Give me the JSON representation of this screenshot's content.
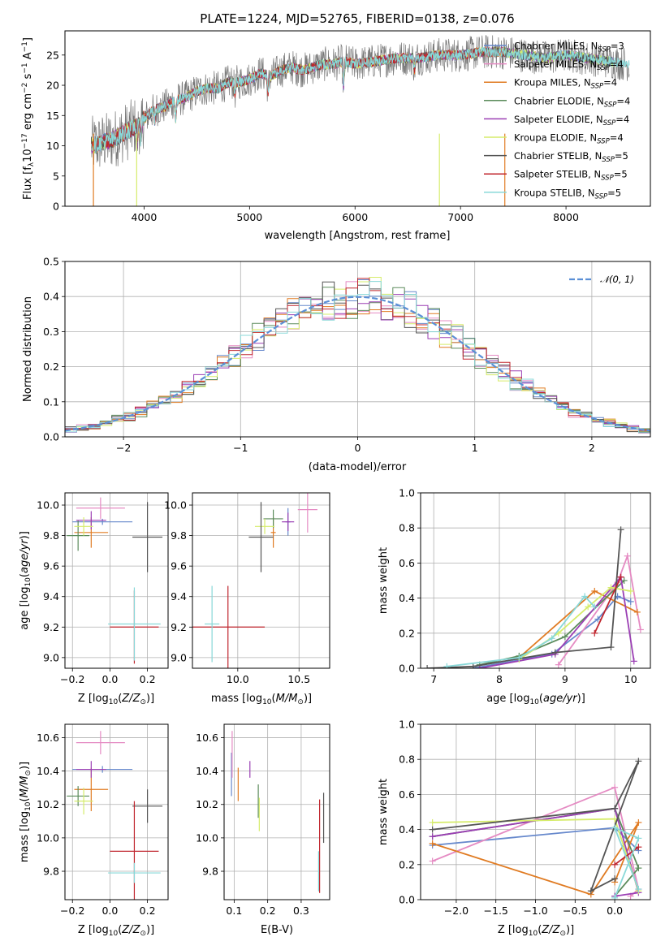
{
  "figure": {
    "title": "PLATE=1224, MJD=52765, FIBERID=0138, z=0.076"
  },
  "chart_data": [
    {
      "id": "spectrum",
      "type": "line",
      "xlabel": "wavelength [Angstrom, rest frame]",
      "ylabel": "Flux [f_λ 10^-17 erg cm^-2 s^-1 A^-1]",
      "xlim": [
        3250,
        8800
      ],
      "ylim": [
        0,
        29
      ],
      "xticks": [
        4000,
        5000,
        6000,
        7000,
        8000
      ],
      "yticks": [
        0,
        5,
        10,
        15,
        20,
        25
      ],
      "grid": false,
      "legend_position": "upper right",
      "data_envelope": {
        "x": [
          3500,
          3600,
          3700,
          3800,
          3900,
          4000,
          4100,
          4200,
          4300,
          4400,
          4500,
          4600,
          4700,
          4800,
          4900,
          5000,
          5100,
          5200,
          5300,
          5400,
          5500,
          5600,
          5700,
          5800,
          5900,
          6000,
          6200,
          6400,
          6600,
          6800,
          7000,
          7200,
          7400,
          7600,
          7800,
          8000,
          8200,
          8400,
          8600
        ],
        "y": [
          10,
          10.5,
          11,
          12,
          13,
          14.5,
          16,
          16.5,
          17.5,
          18,
          19,
          19.5,
          19.5,
          20.5,
          20.5,
          21,
          22,
          21.5,
          22.5,
          23,
          22.5,
          23,
          23.5,
          23.5,
          24,
          23.5,
          24,
          24.5,
          24.5,
          25,
          25,
          25.5,
          25.5,
          25,
          24.5,
          25,
          24.5,
          24,
          23.5
        ]
      },
      "noisy_model": "Chabrier STELIB, N_SSP=5",
      "series": [
        {
          "name": "Chabrier MILES, N_SSP=3",
          "color": "#6688cc"
        },
        {
          "name": "Salpeter MILES, N_SSP=4",
          "color": "#e58bc3"
        },
        {
          "name": "Kroupa MILES, N_SSP=4",
          "color": "#e07b22"
        },
        {
          "name": "Chabrier ELODIE, N_SSP=4",
          "color": "#5b8b5b"
        },
        {
          "name": "Salpeter ELODIE, N_SSP=4",
          "color": "#9b3fb4"
        },
        {
          "name": "Kroupa ELODIE, N_SSP=4",
          "color": "#d6ec6b"
        },
        {
          "name": "Chabrier STELIB, N_SSP=5",
          "color": "#555555"
        },
        {
          "name": "Salpeter STELIB, N_SSP=5",
          "color": "#c0262e"
        },
        {
          "name": "Kroupa STELIB, N_SSP=5",
          "color": "#88d8d8"
        }
      ]
    },
    {
      "id": "residuals",
      "type": "histogram",
      "xlabel": "(data-model)/error",
      "ylabel": "Normed distribution",
      "xlim": [
        -2.5,
        2.5
      ],
      "ylim": [
        0,
        0.5
      ],
      "xticks": [
        -2,
        -1,
        0,
        1,
        2
      ],
      "yticks": [
        0.0,
        0.1,
        0.2,
        0.3,
        0.4,
        0.5
      ],
      "grid": true,
      "legend_position": "upper right",
      "reference_curve": {
        "name": "N(0,1)",
        "color": "#5b8fd6",
        "style": "dashed",
        "mean": 0,
        "sigma": 1
      },
      "bin_width": 0.1,
      "x_start": -2.5,
      "series_colors": [
        "#6688cc",
        "#e58bc3",
        "#e07b22",
        "#5b8b5b",
        "#9b3fb4",
        "#d6ec6b",
        "#555555",
        "#c0262e",
        "#88d8d8"
      ]
    },
    {
      "id": "Z_vs_age",
      "type": "errorbar",
      "xlabel": "Z [log10(Z/Z⊙)]",
      "ylabel": "age [log10(age/yr)]",
      "xlim": [
        -0.24,
        0.31
      ],
      "ylim": [
        8.93,
        10.08
      ],
      "xticks": [
        -0.2,
        0.0,
        0.2
      ],
      "yticks": [
        9.0,
        9.2,
        9.4,
        9.6,
        9.8,
        10.0
      ],
      "grid": true,
      "points": [
        {
          "color": "#6688cc",
          "x": -0.04,
          "xerr": 0.16,
          "y": 9.89,
          "yerr": 0.02
        },
        {
          "color": "#e58bc3",
          "x": -0.05,
          "xerr": 0.13,
          "y": 9.98,
          "yerr": 0.07
        },
        {
          "color": "#e07b22",
          "x": -0.1,
          "xerr": 0.09,
          "y": 9.82,
          "yerr": 0.1
        },
        {
          "color": "#5b8b5b",
          "x": -0.17,
          "xerr": 0.06,
          "y": 9.8,
          "yerr": 0.1
        },
        {
          "color": "#9b3fb4",
          "x": -0.1,
          "xerr": 0.08,
          "y": 9.9,
          "yerr": 0.06
        },
        {
          "color": "#d6ec6b",
          "x": -0.14,
          "xerr": 0.05,
          "y": 9.86,
          "yerr": 0.06
        },
        {
          "color": "#555555",
          "x": 0.2,
          "xerr": 0.08,
          "y": 9.79,
          "yerr": 0.23
        },
        {
          "color": "#c0262e",
          "x": 0.13,
          "xerr": 0.13,
          "y": 9.2,
          "yerr": 0.24
        },
        {
          "color": "#88d8d8",
          "x": 0.13,
          "xerr": 0.14,
          "y": 9.22,
          "yerr": 0.24
        }
      ]
    },
    {
      "id": "mass_vs_age",
      "type": "errorbar",
      "xlabel": "mass [log10(M/M⊙)]",
      "ylabel": "",
      "xlim": [
        9.63,
        10.75
      ],
      "ylim": [
        8.93,
        10.08
      ],
      "xticks": [
        10.0,
        10.5
      ],
      "yticks": [
        9.0,
        9.2,
        9.4,
        9.6,
        9.8,
        10.0
      ],
      "grid": true,
      "points": [
        {
          "color": "#6688cc",
          "x": 10.41,
          "xerr": 0.02,
          "y": 9.89,
          "yerr": 0.09
        },
        {
          "color": "#e58bc3",
          "x": 10.57,
          "xerr": 0.08,
          "y": 9.97,
          "yerr": 0.15
        },
        {
          "color": "#e07b22",
          "x": 10.29,
          "xerr": 0.02,
          "y": 9.82,
          "yerr": 0.1
        },
        {
          "color": "#5b8b5b",
          "x": 10.29,
          "xerr": 0.08,
          "y": 9.91,
          "yerr": 0.06
        },
        {
          "color": "#9b3fb4",
          "x": 10.41,
          "xerr": 0.05,
          "y": 9.89,
          "yerr": 0.06
        },
        {
          "color": "#d6ec6b",
          "x": 10.22,
          "xerr": 0.08,
          "y": 9.86,
          "yerr": 0.05
        },
        {
          "color": "#555555",
          "x": 10.19,
          "xerr": 0.1,
          "y": 9.79,
          "yerr": 0.23
        },
        {
          "color": "#c0262e",
          "x": 9.92,
          "xerr": 0.3,
          "y": 9.2,
          "yerr": 0.27
        },
        {
          "color": "#88d8d8",
          "x": 9.79,
          "xerr": 0.06,
          "y": 9.22,
          "yerr": 0.25
        }
      ]
    },
    {
      "id": "age_vs_weight",
      "type": "line",
      "xlabel": "age [log10(age/yr)]",
      "ylabel": "mass weight",
      "xlim": [
        6.8,
        10.3
      ],
      "ylim": [
        0,
        1.0
      ],
      "xticks": [
        7,
        8,
        9,
        10
      ],
      "yticks": [
        0.0,
        0.2,
        0.4,
        0.6,
        0.8,
        1.0
      ],
      "grid": true,
      "series": [
        {
          "color": "#6688cc",
          "x": [
            7.6,
            8.8,
            9.5,
            9.8,
            10.0
          ],
          "y": [
            0.0,
            0.08,
            0.28,
            0.41,
            0.38
          ]
        },
        {
          "color": "#e58bc3",
          "x": [
            8.9,
            9.8,
            9.95,
            10.15
          ],
          "y": [
            0.02,
            0.49,
            0.64,
            0.22
          ]
        },
        {
          "color": "#e07b22",
          "x": [
            8.3,
            9.45,
            10.1
          ],
          "y": [
            0.06,
            0.44,
            0.32
          ]
        },
        {
          "color": "#5b8b5b",
          "x": [
            7.7,
            8.3,
            9.0,
            9.9
          ],
          "y": [
            0.02,
            0.07,
            0.18,
            0.5
          ]
        },
        {
          "color": "#9b3fb4",
          "x": [
            7.7,
            8.85,
            9.85,
            10.05
          ],
          "y": [
            0.0,
            0.08,
            0.52,
            0.04
          ]
        },
        {
          "color": "#d6ec6b",
          "x": [
            8.3,
            8.9,
            9.35,
            9.7,
            10.0
          ],
          "y": [
            0.05,
            0.2,
            0.35,
            0.46,
            0.44
          ]
        },
        {
          "color": "#555555",
          "x": [
            6.9,
            7.6,
            8.85,
            9.7,
            9.85
          ],
          "y": [
            0.0,
            0.01,
            0.09,
            0.12,
            0.79
          ]
        },
        {
          "color": "#c0262e",
          "x": [
            9.45,
            9.85
          ],
          "y": [
            0.2,
            0.52
          ]
        },
        {
          "color": "#88d8d8",
          "x": [
            7.2,
            8.3,
            8.8,
            9.3,
            9.45
          ],
          "y": [
            0.01,
            0.06,
            0.17,
            0.41,
            0.35
          ]
        }
      ]
    },
    {
      "id": "Z_vs_mass",
      "type": "errorbar",
      "xlabel": "Z [log10(Z/Z⊙)]",
      "ylabel": "mass [log10(M/M⊙)]",
      "xlim": [
        -0.24,
        0.31
      ],
      "ylim": [
        9.63,
        10.68
      ],
      "xticks": [
        -0.2,
        0.0,
        0.2
      ],
      "yticks": [
        9.8,
        10.0,
        10.2,
        10.4,
        10.6
      ],
      "grid": true,
      "points": [
        {
          "color": "#6688cc",
          "x": -0.04,
          "xerr": 0.16,
          "y": 10.41,
          "yerr": 0.02
        },
        {
          "color": "#e58bc3",
          "x": -0.05,
          "xerr": 0.13,
          "y": 10.57,
          "yerr": 0.07
        },
        {
          "color": "#e07b22",
          "x": -0.1,
          "xerr": 0.09,
          "y": 10.29,
          "yerr": 0.13
        },
        {
          "color": "#5b8b5b",
          "x": -0.17,
          "xerr": 0.06,
          "y": 10.25,
          "yerr": 0.06
        },
        {
          "color": "#9b3fb4",
          "x": -0.1,
          "xerr": 0.08,
          "y": 10.41,
          "yerr": 0.05
        },
        {
          "color": "#d6ec6b",
          "x": -0.14,
          "xerr": 0.05,
          "y": 10.22,
          "yerr": 0.08
        },
        {
          "color": "#555555",
          "x": 0.2,
          "xerr": 0.08,
          "y": 10.19,
          "yerr": 0.1
        },
        {
          "color": "#c0262e",
          "x": 0.13,
          "xerr": 0.13,
          "y": 9.92,
          "yerr": 0.3
        },
        {
          "color": "#88d8d8",
          "x": 0.13,
          "xerr": 0.14,
          "y": 9.79,
          "yerr": 0.06
        }
      ]
    },
    {
      "id": "EBV_vs_mass",
      "type": "errorbar",
      "xlabel": "E(B-V)",
      "ylabel": "",
      "xlim": [
        0.07,
        0.385
      ],
      "ylim": [
        9.63,
        10.68
      ],
      "xticks": [
        0.1,
        0.2,
        0.3
      ],
      "yticks": [
        9.8,
        10.0,
        10.2,
        10.4,
        10.6
      ],
      "grid": true,
      "points": [
        {
          "color": "#6688cc",
          "x": 0.092,
          "xerr": 0.0,
          "y": 10.38,
          "yerr": 0.13
        },
        {
          "color": "#e58bc3",
          "x": 0.094,
          "xerr": 0.0,
          "y": 10.5,
          "yerr": 0.14
        },
        {
          "color": "#e07b22",
          "x": 0.112,
          "xerr": 0.0,
          "y": 10.32,
          "yerr": 0.1
        },
        {
          "color": "#5b8b5b",
          "x": 0.172,
          "xerr": 0.0,
          "y": 10.22,
          "yerr": 0.1
        },
        {
          "color": "#9b3fb4",
          "x": 0.147,
          "xerr": 0.0,
          "y": 10.41,
          "yerr": 0.05
        },
        {
          "color": "#d6ec6b",
          "x": 0.175,
          "xerr": 0.0,
          "y": 10.14,
          "yerr": 0.1
        },
        {
          "color": "#555555",
          "x": 0.367,
          "xerr": 0.0,
          "y": 10.12,
          "yerr": 0.15
        },
        {
          "color": "#c0262e",
          "x": 0.355,
          "xerr": 0.0,
          "y": 9.95,
          "yerr": 0.28
        },
        {
          "color": "#88d8d8",
          "x": 0.352,
          "xerr": 0.0,
          "y": 9.8,
          "yerr": 0.12
        }
      ]
    },
    {
      "id": "Z_vs_weight",
      "type": "line",
      "xlabel": "Z [log10(Z/Z⊙)]",
      "ylabel": "mass weight",
      "xlim": [
        -2.45,
        0.45
      ],
      "ylim": [
        0,
        1.0
      ],
      "xticks": [
        -2.0,
        -1.5,
        -1.0,
        -0.5,
        0.0
      ],
      "yticks": [
        0.0,
        0.2,
        0.4,
        0.6,
        0.8,
        1.0
      ],
      "grid": true,
      "series": [
        {
          "color": "#6688cc",
          "x": [
            -2.3,
            0.0,
            0.3
          ],
          "y": [
            0.31,
            0.41,
            0.28
          ]
        },
        {
          "color": "#e58bc3",
          "x": [
            -2.3,
            0.0,
            0.3,
            0.2
          ],
          "y": [
            0.22,
            0.64,
            0.06,
            0.02
          ]
        },
        {
          "color": "#e07b22",
          "x": [
            -2.3,
            -0.3,
            0.3,
            0.0
          ],
          "y": [
            0.32,
            0.03,
            0.44,
            0.1
          ]
        },
        {
          "color": "#5b8b5b",
          "x": [
            -2.3,
            0.0,
            0.3,
            0.0
          ],
          "y": [
            0.36,
            0.52,
            0.18,
            0.02
          ]
        },
        {
          "color": "#9b3fb4",
          "x": [
            -2.3,
            0.0,
            0.3,
            0.0
          ],
          "y": [
            0.36,
            0.52,
            0.04,
            0.02
          ]
        },
        {
          "color": "#d6ec6b",
          "x": [
            -2.3,
            0.0,
            0.3
          ],
          "y": [
            0.44,
            0.46,
            0.05
          ]
        },
        {
          "color": "#555555",
          "x": [
            -2.3,
            0.0,
            0.3,
            -0.3,
            0.0
          ],
          "y": [
            0.4,
            0.52,
            0.79,
            0.05,
            0.12
          ]
        },
        {
          "color": "#c0262e",
          "x": [
            0.0,
            0.3
          ],
          "y": [
            0.2,
            0.3
          ]
        },
        {
          "color": "#88d8d8",
          "x": [
            0.0,
            0.3,
            0.0,
            0.3
          ],
          "y": [
            0.01,
            0.35,
            0.41,
            0.06
          ]
        }
      ]
    }
  ]
}
